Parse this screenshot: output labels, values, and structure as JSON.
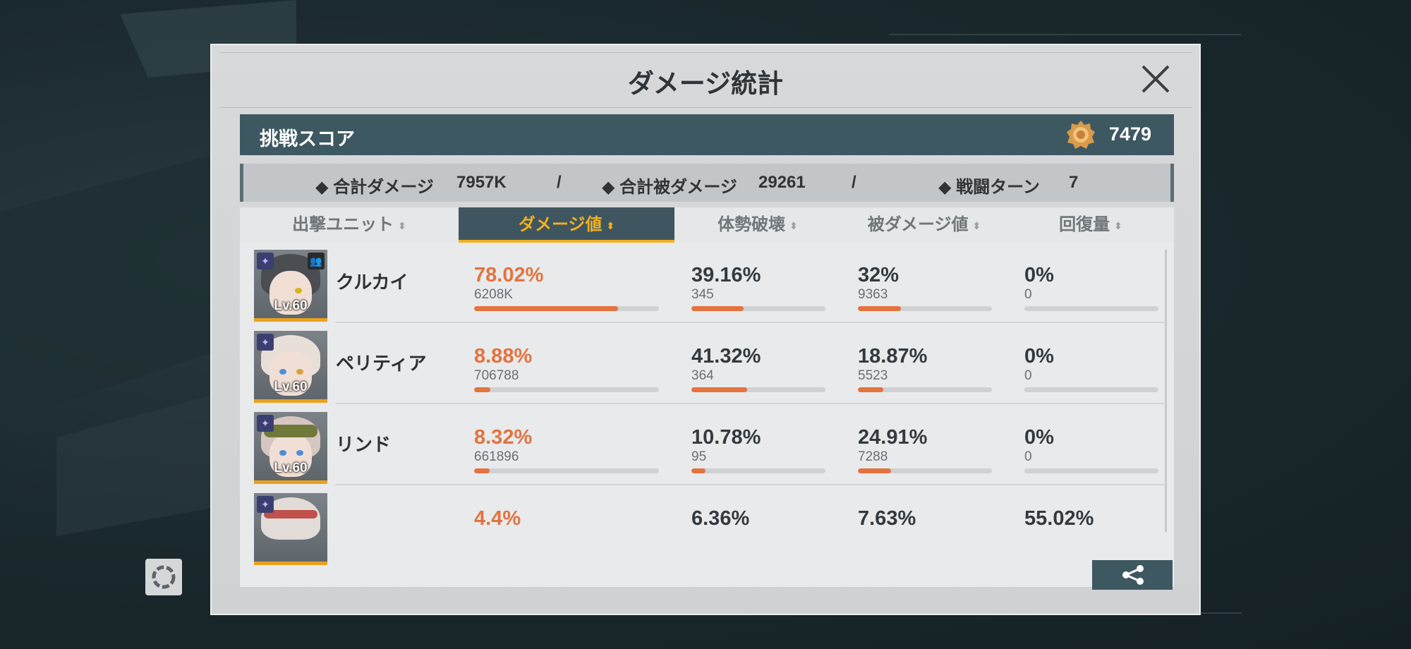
{
  "dialog": {
    "title": "ダメージ統計"
  },
  "score": {
    "label": "挑戦スコア",
    "value": "7479"
  },
  "summary": {
    "total_damage_label": "◆ 合計ダメージ",
    "total_damage_value": "7957K",
    "sep1": "/",
    "total_taken_label": "◆ 合計被ダメージ",
    "total_taken_value": "29261",
    "sep2": "/",
    "turns_label": "◆ 戦闘ターン",
    "turns_value": "7"
  },
  "columns": {
    "unit": "出撃ユニット",
    "damage": "ダメージ値",
    "break": "体勢破壊",
    "taken": "被ダメージ値",
    "heal": "回復量"
  },
  "units": [
    {
      "name": "クルカイ",
      "level": "Lv.60",
      "damage_pct": "78.02%",
      "damage_raw": "6208K",
      "damage_frac": 0.7802,
      "break_pct": "39.16%",
      "break_raw": "345",
      "break_frac": 0.3916,
      "taken_pct": "32%",
      "taken_raw": "9363",
      "taken_frac": 0.32,
      "heal_pct": "0%",
      "heal_raw": "0",
      "heal_frac": 0
    },
    {
      "name": "ペリティア",
      "level": "Lv.60",
      "damage_pct": "8.88%",
      "damage_raw": "706788",
      "damage_frac": 0.0888,
      "break_pct": "41.32%",
      "break_raw": "364",
      "break_frac": 0.4132,
      "taken_pct": "18.87%",
      "taken_raw": "5523",
      "taken_frac": 0.1887,
      "heal_pct": "0%",
      "heal_raw": "0",
      "heal_frac": 0
    },
    {
      "name": "リンド",
      "level": "Lv.60",
      "damage_pct": "8.32%",
      "damage_raw": "661896",
      "damage_frac": 0.0832,
      "break_pct": "10.78%",
      "break_raw": "95",
      "break_frac": 0.1078,
      "taken_pct": "24.91%",
      "taken_raw": "7288",
      "taken_frac": 0.2491,
      "heal_pct": "0%",
      "heal_raw": "0",
      "heal_frac": 0
    },
    {
      "name": "",
      "level": "",
      "damage_pct": "4.4%",
      "break_pct": "6.36%",
      "taken_pct": "7.63%",
      "heal_pct": "55.02%"
    }
  ],
  "colors": {
    "accent": "#e3733f",
    "header_active": "#3f5660",
    "header_active_text": "#f2b120",
    "score_bar": "#3e5862"
  },
  "icons": {
    "close": "close-icon",
    "share": "share-icon",
    "medal": "medal-icon",
    "sort": "sort-icon"
  }
}
